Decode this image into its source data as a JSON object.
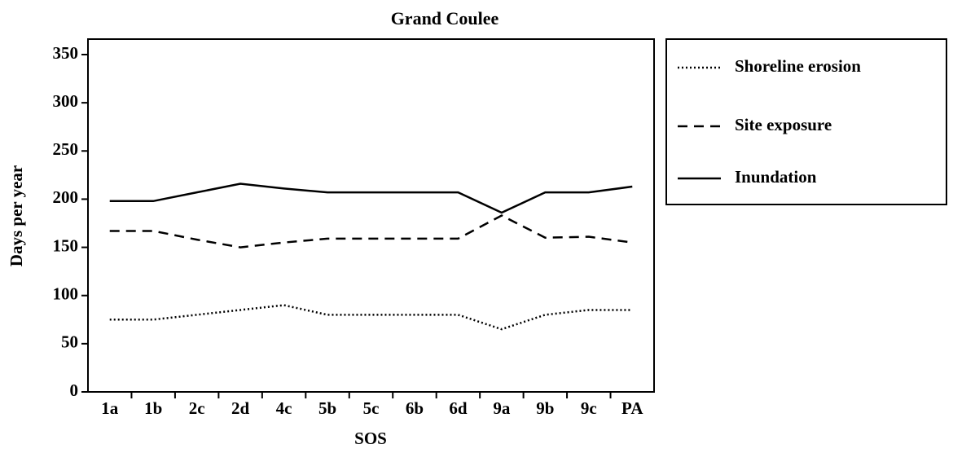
{
  "chart_data": {
    "type": "line",
    "title": "Grand Coulee",
    "xlabel": "SOS",
    "ylabel": "Days per year",
    "categories": [
      "1a",
      "1b",
      "2c",
      "2d",
      "4c",
      "5b",
      "5c",
      "6b",
      "6d",
      "9a",
      "9b",
      "9c",
      "PA"
    ],
    "series": [
      {
        "name": "Shoreline erosion",
        "color": "#000000",
        "style": "dotted",
        "values": [
          75,
          75,
          80,
          85,
          90,
          80,
          80,
          80,
          80,
          65,
          80,
          85,
          85
        ]
      },
      {
        "name": "Site exposure",
        "color": "#000000",
        "style": "dashed",
        "values": [
          167,
          167,
          158,
          150,
          155,
          159,
          159,
          159,
          159,
          183,
          160,
          161,
          155
        ]
      },
      {
        "name": "Inundation",
        "color": "#000000",
        "style": "solid",
        "values": [
          198,
          198,
          207,
          216,
          211,
          207,
          207,
          207,
          207,
          186,
          207,
          207,
          213
        ]
      }
    ],
    "ylim": [
      0,
      350
    ],
    "yticks": [
      0,
      50,
      100,
      150,
      200,
      250,
      300,
      350
    ],
    "grid": false
  }
}
